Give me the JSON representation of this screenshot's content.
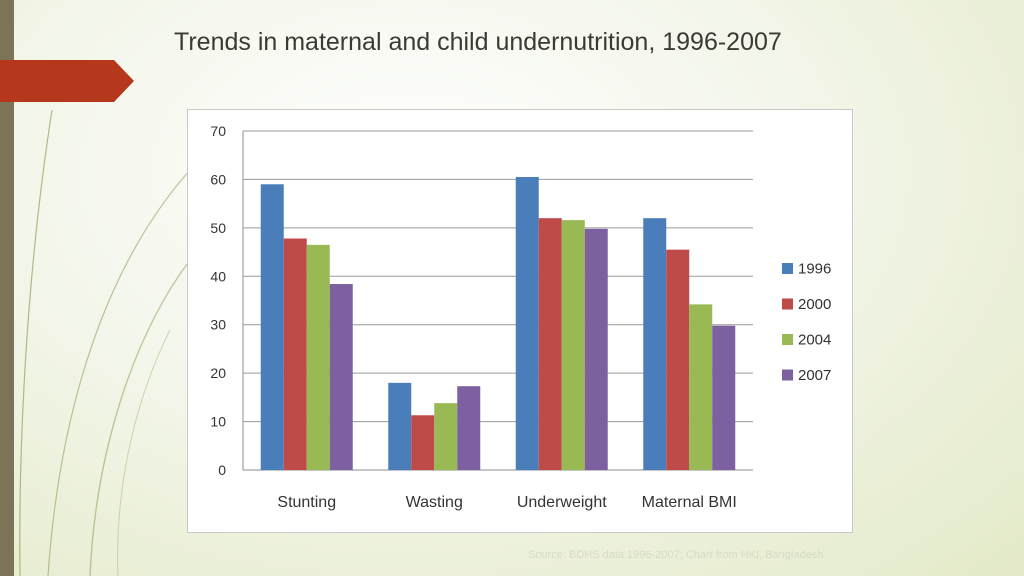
{
  "slide": {
    "title": "Trends in maternal and child undernutrition, 1996-2007",
    "source_note": "Source: BDHS data 1996-2007; Chart from HKI, Bangladesh"
  },
  "theme": {
    "accent_tab": "#b5381d",
    "left_bar": "#7d7457",
    "deco_curve": "#8ea25a"
  },
  "chart_data": {
    "type": "bar",
    "title": "",
    "xlabel": "",
    "ylabel": "",
    "categories": [
      "Stunting",
      "Wasting",
      "Underweight",
      "Maternal BMI"
    ],
    "series": [
      {
        "name": "1996",
        "color": "#4a7ebb",
        "values": [
          59,
          18,
          60.5,
          52
        ]
      },
      {
        "name": "2000",
        "color": "#be4b48",
        "values": [
          47.8,
          11.3,
          52,
          45.5
        ]
      },
      {
        "name": "2004",
        "color": "#98b954",
        "values": [
          46.5,
          13.8,
          51.6,
          34.2
        ]
      },
      {
        "name": "2007",
        "color": "#7d60a0",
        "values": [
          38.4,
          17.3,
          49.8,
          29.8
        ]
      }
    ],
    "ylim": [
      0,
      70
    ],
    "yticks": [
      0,
      10,
      20,
      30,
      40,
      50,
      60,
      70
    ],
    "grid": true,
    "legend_position": "right"
  }
}
